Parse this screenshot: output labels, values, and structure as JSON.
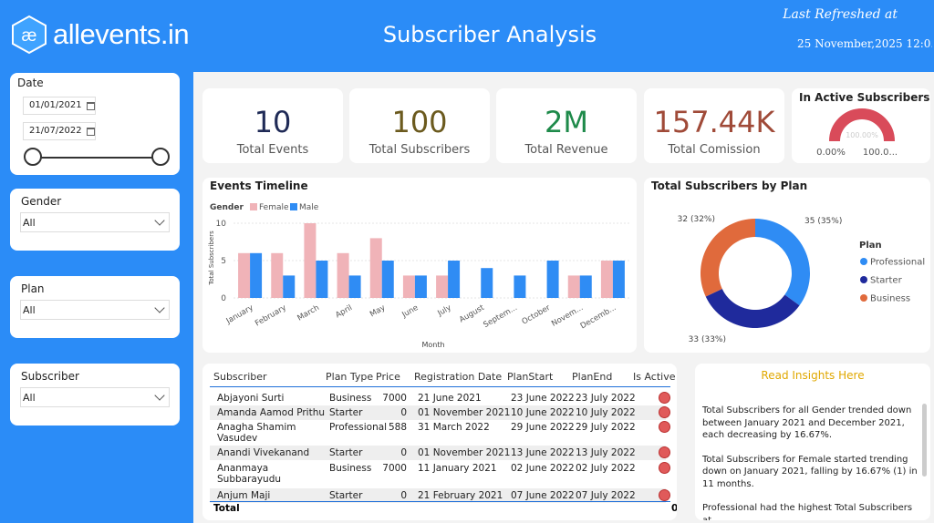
{
  "header": {
    "logo_text": "allevents.in",
    "title": "Subscriber Analysis",
    "refresh_label": "Last Refreshed at",
    "refresh_value": "25 November,2025 12:0..."
  },
  "filters": {
    "date": {
      "label": "Date",
      "start": "01/01/2021",
      "end": "21/07/2022"
    },
    "gender": {
      "label": "Gender",
      "value": "All"
    },
    "plan": {
      "label": "Plan",
      "value": "All"
    },
    "subscriber": {
      "label": "Subscriber",
      "value": "All"
    }
  },
  "kpis": [
    {
      "value": "10",
      "label": "Total Events",
      "color": "#1f2a56"
    },
    {
      "value": "100",
      "label": "Total Subscribers",
      "color": "#6b5a1e"
    },
    {
      "value": "2M",
      "label": "Total Revenue",
      "color": "#1e8a4a"
    },
    {
      "value": "157.44K",
      "label": "Total Comission",
      "color": "#a04a38"
    }
  ],
  "inactive": {
    "title": "In Active Subscribers",
    "center": "100.00%",
    "min": "0.00%",
    "max": "100.0...",
    "value_fraction": 1.0
  },
  "chart_data": [
    {
      "type": "bar",
      "title": "Events Timeline",
      "legend_title": "Gender",
      "xlabel": "Month",
      "ylabel": "Total Subscribers",
      "ylim": [
        0,
        10
      ],
      "yticks": [
        "0",
        "5",
        "10"
      ],
      "categories": [
        "January",
        "February",
        "March",
        "April",
        "May",
        "June",
        "July",
        "August",
        "Septem...",
        "October",
        "Novem...",
        "Decemb..."
      ],
      "series": [
        {
          "name": "Female",
          "color": "#f0b3b8",
          "values": [
            6,
            6,
            10,
            6,
            8,
            3,
            3,
            0,
            0,
            0,
            3,
            5
          ]
        },
        {
          "name": "Male",
          "color": "#2f8cf4",
          "values": [
            6,
            3,
            5,
            3,
            5,
            3,
            5,
            4,
            3,
            5,
            3,
            5
          ]
        }
      ]
    },
    {
      "type": "pie",
      "title": "Total Subscribers by Plan",
      "legend_title": "Plan",
      "categories": [
        "Professional",
        "Starter",
        "Business"
      ],
      "values": [
        35,
        33,
        32
      ],
      "labels": [
        "35 (35%)",
        "33 (33%)",
        "32 (32%)"
      ],
      "colors": [
        "#2f8cf4",
        "#1f2a9c",
        "#e06a3c"
      ]
    }
  ],
  "table": {
    "headers": [
      "Subscriber",
      "Plan Type",
      "Price",
      "Registration Date",
      "PlanStart",
      "PlanEnd",
      "Is Active"
    ],
    "rows": [
      [
        "Abjayoni Surti",
        "Business",
        "7000",
        "21 June 2021",
        "23 June 2022",
        "23 July 2022"
      ],
      [
        "Amanda Aamod Prithu",
        "Starter",
        "0",
        "01 November 2021",
        "10 June 2022",
        "10 July 2022"
      ],
      [
        "Anagha Shamim Vasudev",
        "Professional",
        "588",
        "31 March 2022",
        "29 June 2022",
        "29 July 2022"
      ],
      [
        "Anandi Vivekanand",
        "Starter",
        "0",
        "01 November 2021",
        "13 June 2022",
        "13 July 2022"
      ],
      [
        "Ananmaya Subbarayudu",
        "Business",
        "7000",
        "11 January 2021",
        "02 June 2022",
        "02 July 2022"
      ],
      [
        "Anjum Maji",
        "Starter",
        "0",
        "21 February 2021",
        "07 June 2022",
        "07 July 2022"
      ]
    ],
    "total_label": "Total",
    "total_value": "0"
  },
  "insights": {
    "title": "Read Insights Here",
    "paragraphs": [
      "Total Subscribers for all Gender trended down between January 2021 and December 2021, each decreasing by 16.67%.",
      "Total Subscribers for Female started trending down on January 2021, falling by 16.67% (1) in 11 months.",
      "Professional had the highest Total Subscribers at"
    ]
  }
}
